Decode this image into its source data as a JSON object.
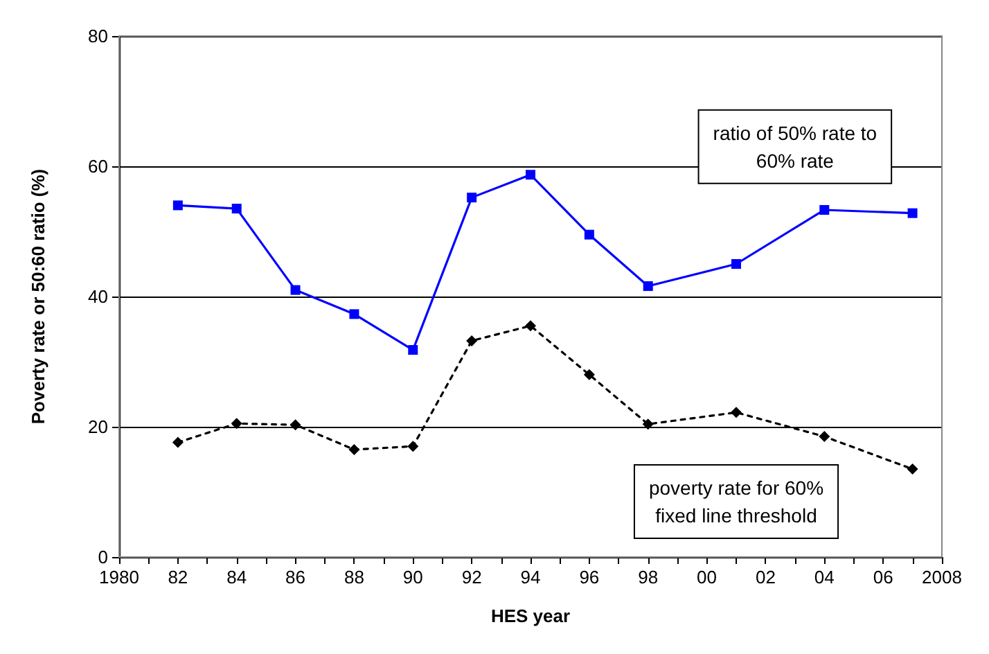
{
  "chart_data": {
    "type": "line",
    "xlabel": "HES year",
    "ylabel": "Poverty rate or 50:60 ratio (%)",
    "x": [
      1982,
      1984,
      1986,
      1988,
      1990,
      1992,
      1994,
      1996,
      1998,
      2001,
      2004,
      2007
    ],
    "series": [
      {
        "name": "ratio of 50% rate to 60% rate",
        "color": "#0000ff",
        "marker": "square",
        "line_style": "solid",
        "values": [
          54,
          53.5,
          41,
          37.3,
          31.8,
          55.2,
          58.7,
          49.5,
          41.6,
          45,
          53.3,
          52.8
        ]
      },
      {
        "name": "poverty rate for 60% fixed line threshold",
        "color": "#000000",
        "marker": "diamond",
        "line_style": "dotted",
        "values": [
          17.6,
          20.5,
          20.3,
          16.5,
          17,
          33.2,
          35.5,
          28,
          20.4,
          22.2,
          18.5,
          13.5
        ]
      }
    ],
    "xlim": [
      1980,
      2008
    ],
    "xticks": [
      {
        "value": 1980,
        "label": "1980"
      },
      {
        "value": 1981,
        "label": null
      },
      {
        "value": 1982,
        "label": "82"
      },
      {
        "value": 1983,
        "label": null
      },
      {
        "value": 1984,
        "label": "84"
      },
      {
        "value": 1985,
        "label": null
      },
      {
        "value": 1986,
        "label": "86"
      },
      {
        "value": 1987,
        "label": null
      },
      {
        "value": 1988,
        "label": "88"
      },
      {
        "value": 1989,
        "label": null
      },
      {
        "value": 1990,
        "label": "90"
      },
      {
        "value": 1991,
        "label": null
      },
      {
        "value": 1992,
        "label": "92"
      },
      {
        "value": 1993,
        "label": null
      },
      {
        "value": 1994,
        "label": "94"
      },
      {
        "value": 1995,
        "label": null
      },
      {
        "value": 1996,
        "label": "96"
      },
      {
        "value": 1997,
        "label": null
      },
      {
        "value": 1998,
        "label": "98"
      },
      {
        "value": 1999,
        "label": null
      },
      {
        "value": 2000,
        "label": "00"
      },
      {
        "value": 2001,
        "label": null
      },
      {
        "value": 2002,
        "label": "02"
      },
      {
        "value": 2003,
        "label": null
      },
      {
        "value": 2004,
        "label": "04"
      },
      {
        "value": 2005,
        "label": null
      },
      {
        "value": 2006,
        "label": "06"
      },
      {
        "value": 2007,
        "label": null
      },
      {
        "value": 2008,
        "label": "2008"
      }
    ],
    "ylim": [
      0,
      80
    ],
    "yticks": [
      0,
      20,
      40,
      60,
      80
    ],
    "grid": "y",
    "legend": false
  }
}
